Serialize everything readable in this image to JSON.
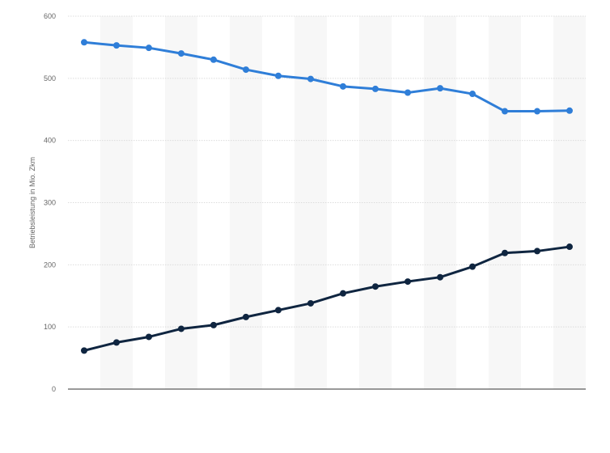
{
  "chart_data": {
    "type": "line",
    "title": "",
    "xlabel": "",
    "ylabel": "Betriebsleistung in Mio. Zkm",
    "ylim": [
      0,
      600
    ],
    "yticks": [
      0,
      100,
      200,
      300,
      400,
      500,
      600
    ],
    "grid": true,
    "categories": [
      "",
      "",
      "",
      "",
      "",
      "",
      "",
      "",
      "",
      "",
      "",
      "",
      "",
      "",
      "",
      ""
    ],
    "series": [
      {
        "color": "#2f7ed8",
        "values": [
          558,
          553,
          549,
          540,
          530,
          514,
          504,
          499,
          487,
          483,
          477,
          484,
          475,
          447,
          447,
          448
        ]
      },
      {
        "color": "#0f2540",
        "values": [
          62,
          75,
          84,
          97,
          103,
          116,
          127,
          138,
          154,
          165,
          173,
          180,
          197,
          219,
          222,
          229
        ]
      }
    ]
  }
}
